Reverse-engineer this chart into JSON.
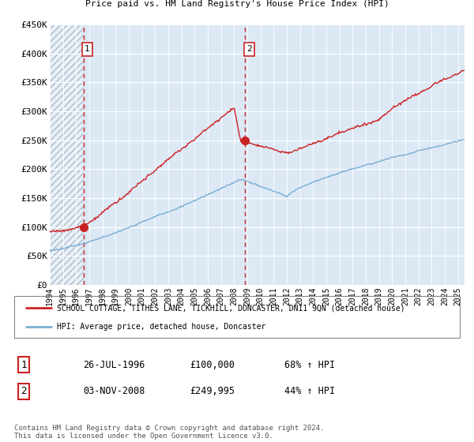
{
  "title": "SCHOOL COTTAGE, TITHES LANE, TICKHILL, DONCASTER, DN11 9QN",
  "subtitle": "Price paid vs. HM Land Registry's House Price Index (HPI)",
  "ylabel_ticks": [
    "£0",
    "£50K",
    "£100K",
    "£150K",
    "£200K",
    "£250K",
    "£300K",
    "£350K",
    "£400K",
    "£450K"
  ],
  "ytick_values": [
    0,
    50000,
    100000,
    150000,
    200000,
    250000,
    300000,
    350000,
    400000,
    450000
  ],
  "ylim": [
    0,
    450000
  ],
  "xlim_start": 1994.0,
  "xlim_end": 2025.5,
  "hpi_line_color": "#7bafd4",
  "price_line_color": "#cc2222",
  "sale1_x": 1996.55,
  "sale1_y": 100000,
  "sale2_x": 2008.84,
  "sale2_y": 249995,
  "sale1_label": "1",
  "sale2_label": "2",
  "vline1_x": 1996.55,
  "vline2_x": 2008.84,
  "legend_property": "SCHOOL COTTAGE, TITHES LANE, TICKHILL, DONCASTER, DN11 9QN (detached house)",
  "legend_hpi": "HPI: Average price, detached house, Doncaster",
  "table_row1_num": "1",
  "table_row1_date": "26-JUL-1996",
  "table_row1_price": "£100,000",
  "table_row1_hpi": "68% ↑ HPI",
  "table_row2_num": "2",
  "table_row2_date": "03-NOV-2008",
  "table_row2_price": "£249,995",
  "table_row2_hpi": "44% ↑ HPI",
  "footer": "Contains HM Land Registry data © Crown copyright and database right 2024.\nThis data is licensed under the Open Government Licence v3.0.",
  "background_color": "#ffffff",
  "plot_bg_color": "#dce9f5",
  "hatch_color": "#c0c8d0",
  "grid_color": "#ffffff",
  "grid_linewidth": 0.8,
  "sale_marker_size": 7
}
